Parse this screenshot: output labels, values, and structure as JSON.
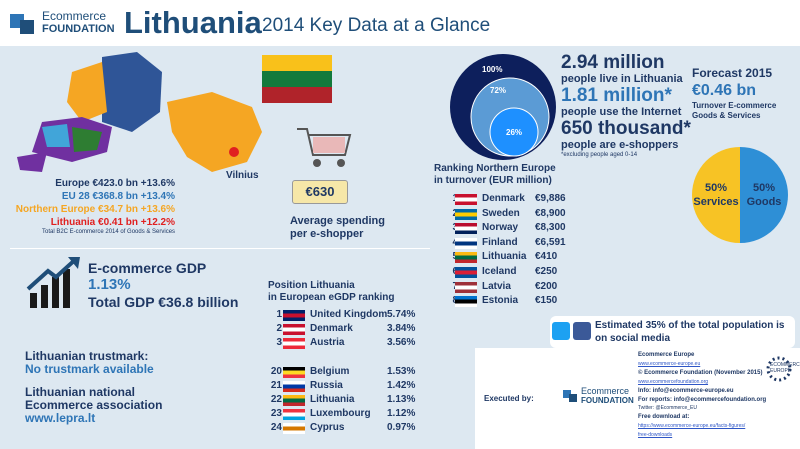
{
  "header": {
    "brand_top": "Ecommerce",
    "brand_bottom": "FOUNDATION",
    "title": "Lithuania",
    "subtitle": "2014 Key Data at a Glance"
  },
  "map": {
    "city": "Vilnius"
  },
  "europe": {
    "lines": [
      "Europe €423.0 bn +13.6%",
      "EU 28 €368.8 bn +13.4%",
      "Northern Europe €34.7 bn +13.6%",
      "Lithuania €0.41 bn +12.2%"
    ],
    "note": "Total B2C E-commerce 2014 of Goods & Services"
  },
  "spending": {
    "value": "€630",
    "label_1": "Average spending",
    "label_2": "per e-shopper"
  },
  "population": {
    "circles": [
      "100%",
      "72%",
      "26%"
    ],
    "stats": [
      {
        "value": "2.94 million",
        "label": "people live in Lithuania"
      },
      {
        "value": "1.81 million*",
        "label": "people use the Internet"
      },
      {
        "value": "650 thousand*",
        "label": "people are e-shoppers"
      }
    ],
    "note": "*excluding people aged 0-14"
  },
  "forecast": {
    "title": "Forecast 2015",
    "value": "€0.46 bn",
    "label_1": "Turnover E-commerce",
    "label_2": "Goods & Services"
  },
  "chart_data": {
    "type": "pie",
    "categories": [
      "Services",
      "Goods"
    ],
    "values": [
      50,
      50
    ],
    "value_labels": [
      "50%",
      "50%"
    ],
    "colors": [
      "#f7c325",
      "#2e8fd6"
    ]
  },
  "ranking_north": {
    "title_1": "Ranking Northern Europe",
    "title_2": "in turnover (EUR million)",
    "rows": [
      [
        1,
        "Denmark",
        "€9,886"
      ],
      [
        2,
        "Sweden",
        "€8,900"
      ],
      [
        3,
        "Norway",
        "€8,300"
      ],
      [
        4,
        "Finland",
        "€6,591"
      ],
      [
        5,
        "Lithuania",
        "€410"
      ],
      [
        6,
        "Iceland",
        "€250"
      ],
      [
        7,
        "Latvia",
        "€200"
      ],
      [
        8,
        "Estonia",
        "€150"
      ]
    ]
  },
  "gdp": {
    "title": "E-commerce GDP",
    "share": "1.13%",
    "total": "Total GDP €36.8 billion"
  },
  "egdp": {
    "title_1": "Position Lithuania",
    "title_2": "in European eGDP ranking",
    "rows": [
      [
        1,
        "United Kingdom",
        "5.74%"
      ],
      [
        2,
        "Denmark",
        "3.84%"
      ],
      [
        3,
        "Austria",
        "3.56%"
      ],
      [
        20,
        "Belgium",
        "1.53%"
      ],
      [
        21,
        "Russia",
        "1.42%"
      ],
      [
        22,
        "Lithuania",
        "1.13%"
      ],
      [
        23,
        "Luxembourg",
        "1.12%"
      ],
      [
        24,
        "Cyprus",
        "0.97%"
      ]
    ]
  },
  "trustmark": {
    "title": "Lithuanian trustmark:",
    "value": "No trustmark available"
  },
  "association": {
    "title_1": "Lithuanian national",
    "title_2": "Ecommerce association",
    "value": "www.lepra.lt"
  },
  "social": {
    "line_1": "Estimated 35% of the total population is",
    "line_2": "on social media"
  },
  "footer": {
    "executed_by": "Executed by:",
    "lines": [
      "Ecommerce Europe",
      "www.ecommerce-europe.eu",
      "© Ecommerce Foundation (November 2015)",
      "www.ecommercefoundation.org",
      "Info: info@ecommerce-europe.eu",
      "For reports: info@ecommercefoundation.org",
      "Twitter: @Ecommerce_EU",
      "Free download at:",
      "https://www.ecommerce-europe.eu/facts-figures/",
      "free-downloads"
    ],
    "badge": "ECOMMERCE EUROPE"
  }
}
